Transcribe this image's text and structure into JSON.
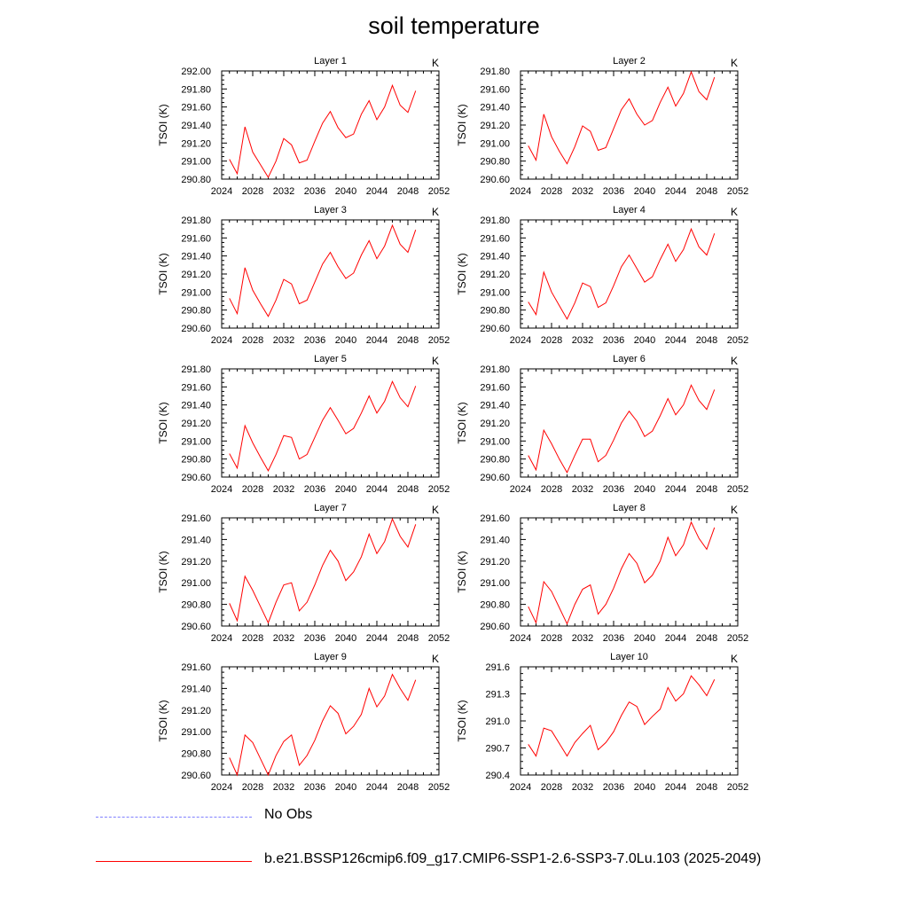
{
  "figure_title": "soil temperature",
  "colors": {
    "model": "#ff0000",
    "obs": "#8080ff",
    "axis": "#000000"
  },
  "legend": [
    {
      "label": "No Obs",
      "style": "dashed",
      "color": "#8080ff"
    },
    {
      "label": "b.e21.BSSP126cmip6.f09_g17.CMIP6-SSP1-2.6-SSP3-7.0Lu.103 (2025-2049)",
      "style": "solid",
      "color": "#ff0000"
    }
  ],
  "chart_data": [
    {
      "type": "line",
      "title": "Layer 1",
      "units": "K",
      "ylabel": "TSOI  (K)",
      "xlim": [
        2024,
        2052
      ],
      "xticks": [
        "2024",
        "2028",
        "2032",
        "2036",
        "2040",
        "2044",
        "2048",
        "2052"
      ],
      "ylim": [
        290.8,
        292.0
      ],
      "yticks": [
        "290.80",
        "291.00",
        "291.20",
        "291.40",
        "291.60",
        "291.80",
        "292.00"
      ],
      "x": [
        2025,
        2026,
        2027,
        2028,
        2029,
        2030,
        2031,
        2032,
        2033,
        2034,
        2035,
        2036,
        2037,
        2038,
        2039,
        2040,
        2041,
        2042,
        2043,
        2044,
        2045,
        2046,
        2047,
        2048,
        2049
      ],
      "series": [
        {
          "name": "b.e21.BSSP126cmip6.f09_g17.CMIP6-SSP1-2.6-SSP3-7.0Lu.103 (2025-2049)",
          "values": [
            291.02,
            290.86,
            291.38,
            291.1,
            290.96,
            290.82,
            291.0,
            291.25,
            291.18,
            290.98,
            291.01,
            291.22,
            291.42,
            291.55,
            291.37,
            291.26,
            291.3,
            291.52,
            291.67,
            291.46,
            291.6,
            291.84,
            291.62,
            291.54,
            291.78
          ]
        }
      ]
    },
    {
      "type": "line",
      "title": "Layer 2",
      "units": "K",
      "ylabel": "TSOI  (K)",
      "xlim": [
        2024,
        2052
      ],
      "xticks": [
        "2024",
        "2028",
        "2032",
        "2036",
        "2040",
        "2044",
        "2048",
        "2052"
      ],
      "ylim": [
        290.6,
        291.8
      ],
      "yticks": [
        "290.60",
        "290.80",
        "291.00",
        "291.20",
        "291.40",
        "291.60",
        "291.80"
      ],
      "x": [
        2025,
        2026,
        2027,
        2028,
        2029,
        2030,
        2031,
        2032,
        2033,
        2034,
        2035,
        2036,
        2037,
        2038,
        2039,
        2040,
        2041,
        2042,
        2043,
        2044,
        2045,
        2046,
        2047,
        2048,
        2049
      ],
      "series": [
        {
          "name": "b.e21.BSSP126cmip6.f09_g17.CMIP6-SSP1-2.6-SSP3-7.0Lu.103 (2025-2049)",
          "values": [
            290.97,
            290.81,
            291.32,
            291.07,
            290.91,
            290.77,
            290.96,
            291.19,
            291.13,
            290.92,
            290.95,
            291.16,
            291.37,
            291.49,
            291.32,
            291.2,
            291.25,
            291.45,
            291.62,
            291.41,
            291.55,
            291.79,
            291.57,
            291.48,
            291.73
          ]
        }
      ]
    },
    {
      "type": "line",
      "title": "Layer 3",
      "units": "K",
      "ylabel": "TSOI  (K)",
      "xlim": [
        2024,
        2052
      ],
      "xticks": [
        "2024",
        "2028",
        "2032",
        "2036",
        "2040",
        "2044",
        "2048",
        "2052"
      ],
      "ylim": [
        290.6,
        291.8
      ],
      "yticks": [
        "290.60",
        "290.80",
        "291.00",
        "291.20",
        "291.40",
        "291.60",
        "291.80"
      ],
      "x": [
        2025,
        2026,
        2027,
        2028,
        2029,
        2030,
        2031,
        2032,
        2033,
        2034,
        2035,
        2036,
        2037,
        2038,
        2039,
        2040,
        2041,
        2042,
        2043,
        2044,
        2045,
        2046,
        2047,
        2048,
        2049
      ],
      "series": [
        {
          "name": "b.e21.BSSP126cmip6.f09_g17.CMIP6-SSP1-2.6-SSP3-7.0Lu.103 (2025-2049)",
          "values": [
            290.93,
            290.76,
            291.27,
            291.02,
            290.87,
            290.73,
            290.91,
            291.14,
            291.09,
            290.87,
            290.91,
            291.11,
            291.31,
            291.44,
            291.28,
            291.15,
            291.21,
            291.41,
            291.57,
            291.37,
            291.51,
            291.74,
            291.53,
            291.44,
            291.69
          ]
        }
      ]
    },
    {
      "type": "line",
      "title": "Layer 4",
      "units": "K",
      "ylabel": "TSOI  (K)",
      "xlim": [
        2024,
        2052
      ],
      "xticks": [
        "2024",
        "2028",
        "2032",
        "2036",
        "2040",
        "2044",
        "2048",
        "2052"
      ],
      "ylim": [
        290.6,
        291.8
      ],
      "yticks": [
        "290.60",
        "290.80",
        "291.00",
        "291.20",
        "291.40",
        "291.60",
        "291.80"
      ],
      "x": [
        2025,
        2026,
        2027,
        2028,
        2029,
        2030,
        2031,
        2032,
        2033,
        2034,
        2035,
        2036,
        2037,
        2038,
        2039,
        2040,
        2041,
        2042,
        2043,
        2044,
        2045,
        2046,
        2047,
        2048,
        2049
      ],
      "series": [
        {
          "name": "b.e21.BSSP126cmip6.f09_g17.CMIP6-SSP1-2.6-SSP3-7.0Lu.103 (2025-2049)",
          "values": [
            290.89,
            290.75,
            291.22,
            291.0,
            290.85,
            290.7,
            290.88,
            291.1,
            291.06,
            290.83,
            290.88,
            291.07,
            291.28,
            291.41,
            291.26,
            291.11,
            291.17,
            291.36,
            291.53,
            291.34,
            291.47,
            291.7,
            291.5,
            291.41,
            291.65
          ]
        }
      ]
    },
    {
      "type": "line",
      "title": "Layer 5",
      "units": "K",
      "ylabel": "TSOI  (K)",
      "xlim": [
        2024,
        2052
      ],
      "xticks": [
        "2024",
        "2028",
        "2032",
        "2036",
        "2040",
        "2044",
        "2048",
        "2052"
      ],
      "ylim": [
        290.6,
        291.8
      ],
      "yticks": [
        "290.60",
        "290.80",
        "291.00",
        "291.20",
        "291.40",
        "291.60",
        "291.80"
      ],
      "x": [
        2025,
        2026,
        2027,
        2028,
        2029,
        2030,
        2031,
        2032,
        2033,
        2034,
        2035,
        2036,
        2037,
        2038,
        2039,
        2040,
        2041,
        2042,
        2043,
        2044,
        2045,
        2046,
        2047,
        2048,
        2049
      ],
      "series": [
        {
          "name": "b.e21.BSSP126cmip6.f09_g17.CMIP6-SSP1-2.6-SSP3-7.0Lu.103 (2025-2049)",
          "values": [
            290.86,
            290.7,
            291.17,
            290.98,
            290.82,
            290.67,
            290.85,
            291.06,
            291.04,
            290.8,
            290.85,
            291.04,
            291.23,
            291.37,
            291.23,
            291.08,
            291.14,
            291.31,
            291.5,
            291.31,
            291.44,
            291.66,
            291.48,
            291.38,
            291.61
          ]
        }
      ]
    },
    {
      "type": "line",
      "title": "Layer 6",
      "units": "K",
      "ylabel": "TSOI  (K)",
      "xlim": [
        2024,
        2052
      ],
      "xticks": [
        "2024",
        "2028",
        "2032",
        "2036",
        "2040",
        "2044",
        "2048",
        "2052"
      ],
      "ylim": [
        290.6,
        291.8
      ],
      "yticks": [
        "290.60",
        "290.80",
        "291.00",
        "291.20",
        "291.40",
        "291.60",
        "291.80"
      ],
      "x": [
        2025,
        2026,
        2027,
        2028,
        2029,
        2030,
        2031,
        2032,
        2033,
        2034,
        2035,
        2036,
        2037,
        2038,
        2039,
        2040,
        2041,
        2042,
        2043,
        2044,
        2045,
        2046,
        2047,
        2048,
        2049
      ],
      "series": [
        {
          "name": "b.e21.BSSP126cmip6.f09_g17.CMIP6-SSP1-2.6-SSP3-7.0Lu.103 (2025-2049)",
          "values": [
            290.84,
            290.68,
            291.12,
            290.97,
            290.8,
            290.65,
            290.84,
            291.02,
            291.02,
            290.77,
            290.84,
            291.01,
            291.2,
            291.33,
            291.22,
            291.05,
            291.11,
            291.28,
            291.47,
            291.29,
            291.4,
            291.62,
            291.45,
            291.35,
            291.57
          ]
        }
      ]
    },
    {
      "type": "line",
      "title": "Layer 7",
      "units": "K",
      "ylabel": "TSOI  (K)",
      "xlim": [
        2024,
        2052
      ],
      "xticks": [
        "2024",
        "2028",
        "2032",
        "2036",
        "2040",
        "2044",
        "2048",
        "2052"
      ],
      "ylim": [
        290.6,
        291.6
      ],
      "yticks": [
        "290.60",
        "290.80",
        "291.00",
        "291.20",
        "291.40",
        "291.60"
      ],
      "x": [
        2025,
        2026,
        2027,
        2028,
        2029,
        2030,
        2031,
        2032,
        2033,
        2034,
        2035,
        2036,
        2037,
        2038,
        2039,
        2040,
        2041,
        2042,
        2043,
        2044,
        2045,
        2046,
        2047,
        2048,
        2049
      ],
      "series": [
        {
          "name": "b.e21.BSSP126cmip6.f09_g17.CMIP6-SSP1-2.6-SSP3-7.0Lu.103 (2025-2049)",
          "values": [
            290.81,
            290.65,
            291.06,
            290.93,
            290.78,
            290.63,
            290.82,
            290.98,
            291.0,
            290.74,
            290.82,
            290.98,
            291.16,
            291.3,
            291.2,
            291.02,
            291.1,
            291.24,
            291.45,
            291.27,
            291.38,
            291.59,
            291.43,
            291.33,
            291.54
          ]
        }
      ]
    },
    {
      "type": "line",
      "title": "Layer 8",
      "units": "K",
      "ylabel": "TSOI  (K)",
      "xlim": [
        2024,
        2052
      ],
      "xticks": [
        "2024",
        "2028",
        "2032",
        "2036",
        "2040",
        "2044",
        "2048",
        "2052"
      ],
      "ylim": [
        290.6,
        291.6
      ],
      "yticks": [
        "290.60",
        "290.80",
        "291.00",
        "291.20",
        "291.40",
        "291.60"
      ],
      "x": [
        2025,
        2026,
        2027,
        2028,
        2029,
        2030,
        2031,
        2032,
        2033,
        2034,
        2035,
        2036,
        2037,
        2038,
        2039,
        2040,
        2041,
        2042,
        2043,
        2044,
        2045,
        2046,
        2047,
        2048,
        2049
      ],
      "series": [
        {
          "name": "b.e21.BSSP126cmip6.f09_g17.CMIP6-SSP1-2.6-SSP3-7.0Lu.103 (2025-2049)",
          "values": [
            290.78,
            290.63,
            291.01,
            290.92,
            290.77,
            290.62,
            290.8,
            290.94,
            290.98,
            290.71,
            290.8,
            290.95,
            291.13,
            291.27,
            291.18,
            291.0,
            291.07,
            291.2,
            291.42,
            291.25,
            291.35,
            291.56,
            291.41,
            291.31,
            291.51
          ]
        }
      ]
    },
    {
      "type": "line",
      "title": "Layer 9",
      "units": "K",
      "ylabel": "TSOI  (K)",
      "xlim": [
        2024,
        2052
      ],
      "xticks": [
        "2024",
        "2028",
        "2032",
        "2036",
        "2040",
        "2044",
        "2048",
        "2052"
      ],
      "ylim": [
        290.6,
        291.6
      ],
      "yticks": [
        "290.60",
        "290.80",
        "291.00",
        "291.20",
        "291.40",
        "291.60"
      ],
      "x": [
        2025,
        2026,
        2027,
        2028,
        2029,
        2030,
        2031,
        2032,
        2033,
        2034,
        2035,
        2036,
        2037,
        2038,
        2039,
        2040,
        2041,
        2042,
        2043,
        2044,
        2045,
        2046,
        2047,
        2048,
        2049
      ],
      "series": [
        {
          "name": "b.e21.BSSP126cmip6.f09_g17.CMIP6-SSP1-2.6-SSP3-7.0Lu.103 (2025-2049)",
          "values": [
            290.76,
            290.6,
            290.97,
            290.9,
            290.75,
            290.6,
            290.78,
            290.91,
            290.97,
            290.69,
            290.78,
            290.92,
            291.1,
            291.24,
            291.17,
            290.98,
            291.05,
            291.16,
            291.4,
            291.23,
            291.33,
            291.53,
            291.4,
            291.29,
            291.48
          ]
        }
      ]
    },
    {
      "type": "line",
      "title": "Layer 10",
      "units": "K",
      "ylabel": "TSOI  (K)",
      "xlim": [
        2024,
        2052
      ],
      "xticks": [
        "2024",
        "2028",
        "2032",
        "2036",
        "2040",
        "2044",
        "2048",
        "2052"
      ],
      "ylim": [
        290.4,
        291.6
      ],
      "yticks": [
        "290.4",
        "290.7",
        "291.0",
        "291.3",
        "291.6"
      ],
      "x": [
        2025,
        2026,
        2027,
        2028,
        2029,
        2030,
        2031,
        2032,
        2033,
        2034,
        2035,
        2036,
        2037,
        2038,
        2039,
        2040,
        2041,
        2042,
        2043,
        2044,
        2045,
        2046,
        2047,
        2048,
        2049
      ],
      "series": [
        {
          "name": "b.e21.BSSP126cmip6.f09_g17.CMIP6-SSP1-2.6-SSP3-7.0Lu.103 (2025-2049)",
          "values": [
            290.74,
            290.61,
            290.92,
            290.89,
            290.75,
            290.61,
            290.76,
            290.86,
            290.95,
            290.68,
            290.76,
            290.88,
            291.06,
            291.21,
            291.16,
            290.96,
            291.05,
            291.13,
            291.37,
            291.22,
            291.3,
            291.5,
            291.4,
            291.28,
            291.46
          ]
        }
      ]
    }
  ]
}
